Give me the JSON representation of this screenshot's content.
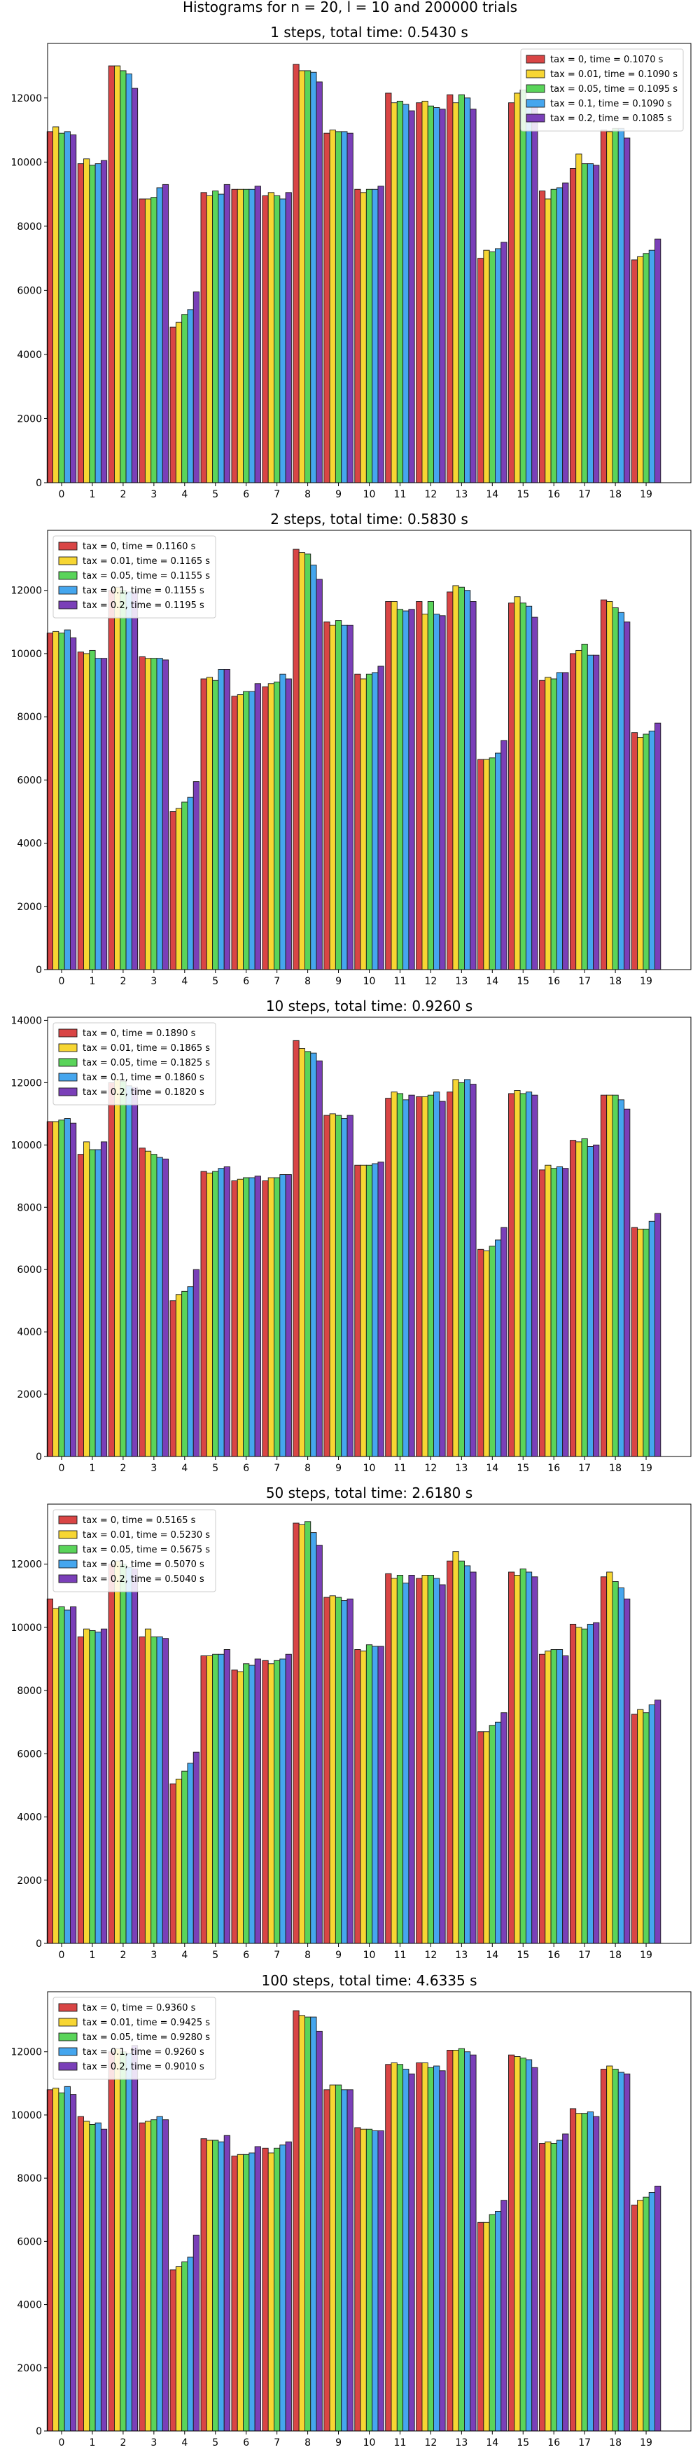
{
  "suptitle": "Histograms for n = 20, l = 10 and 200000 trials",
  "colors": [
    "#d94545",
    "#f7d633",
    "#5ad45a",
    "#45a6ee",
    "#7a3fb8"
  ],
  "chart_data": [
    {
      "type": "bar",
      "title": "1 steps, total time: 0.5430 s",
      "categories": [
        "0",
        "1",
        "2",
        "3",
        "4",
        "5",
        "6",
        "7",
        "8",
        "9",
        "10",
        "11",
        "12",
        "13",
        "14",
        "15",
        "16",
        "17",
        "18",
        "19"
      ],
      "ylim": [
        0,
        13700
      ],
      "yticks": [
        0,
        2000,
        4000,
        6000,
        8000,
        10000,
        12000
      ],
      "legend_position": "upper right",
      "series": [
        {
          "name": "tax = 0, time = 0.1070 s",
          "values": [
            10950,
            9950,
            13000,
            8850,
            4850,
            9050,
            9150,
            8950,
            13050,
            10900,
            9150,
            12150,
            11850,
            12100,
            7000,
            11850,
            9100,
            9800,
            11000,
            6950
          ]
        },
        {
          "name": "tax = 0.01, time = 0.1090 s",
          "values": [
            11100,
            10100,
            13000,
            8850,
            5000,
            8950,
            9150,
            9050,
            12850,
            11000,
            9050,
            11850,
            11900,
            11850,
            7250,
            12150,
            8850,
            10250,
            10950,
            7050
          ]
        },
        {
          "name": "tax = 0.05, time = 0.1095 s",
          "values": [
            10900,
            9900,
            12850,
            8900,
            5250,
            9100,
            9150,
            8950,
            12850,
            10950,
            9150,
            11900,
            11750,
            12100,
            7200,
            12250,
            9150,
            9950,
            11050,
            7150
          ]
        },
        {
          "name": "tax = 0.1, time = 0.1090 s",
          "values": [
            10950,
            9950,
            12750,
            9200,
            5400,
            9000,
            9150,
            8850,
            12800,
            10950,
            9150,
            11800,
            11700,
            12000,
            7300,
            11900,
            9200,
            9950,
            11050,
            7250
          ]
        },
        {
          "name": "tax = 0.2, time = 0.1085 s",
          "values": [
            10850,
            10050,
            12300,
            9300,
            5950,
            9300,
            9250,
            9050,
            12500,
            10900,
            9250,
            11600,
            11650,
            11650,
            7500,
            11950,
            9350,
            9900,
            10750,
            7600
          ]
        }
      ]
    },
    {
      "type": "bar",
      "title": "2 steps, total time: 0.5830 s",
      "categories": [
        "0",
        "1",
        "2",
        "3",
        "4",
        "5",
        "6",
        "7",
        "8",
        "9",
        "10",
        "11",
        "12",
        "13",
        "14",
        "15",
        "16",
        "17",
        "18",
        "19"
      ],
      "ylim": [
        0,
        13900
      ],
      "yticks": [
        0,
        2000,
        4000,
        6000,
        8000,
        10000,
        12000
      ],
      "legend_position": "upper left",
      "series": [
        {
          "name": "tax = 0, time = 0.1160 s",
          "values": [
            10650,
            10050,
            12000,
            9900,
            5000,
            9200,
            8650,
            8950,
            13300,
            11000,
            9350,
            11650,
            11650,
            11950,
            6650,
            11600,
            9150,
            10000,
            11700,
            7500
          ]
        },
        {
          "name": "tax = 0.01, time = 0.1165 s",
          "values": [
            10700,
            10000,
            12100,
            9850,
            5100,
            9250,
            8700,
            9050,
            13200,
            10900,
            9200,
            11650,
            11250,
            12150,
            6650,
            11800,
            9250,
            10100,
            11650,
            7350
          ]
        },
        {
          "name": "tax = 0.05, time = 0.1155 s",
          "values": [
            10650,
            10100,
            12000,
            9850,
            5300,
            9150,
            8800,
            9100,
            13150,
            11050,
            9350,
            11400,
            11650,
            12100,
            6700,
            11600,
            9200,
            10300,
            11450,
            7450
          ]
        },
        {
          "name": "tax = 0.1, time = 0.1155 s",
          "values": [
            10750,
            9850,
            11950,
            9850,
            5450,
            9500,
            8800,
            9350,
            12800,
            10900,
            9400,
            11350,
            11250,
            12000,
            6850,
            11500,
            9400,
            9950,
            11300,
            7550
          ]
        },
        {
          "name": "tax = 0.2, time = 0.1195 s",
          "values": [
            10500,
            9850,
            11950,
            9800,
            5950,
            9500,
            9050,
            9200,
            12350,
            10900,
            9600,
            11400,
            11200,
            11650,
            7250,
            11150,
            9400,
            9950,
            11000,
            7800
          ]
        }
      ]
    },
    {
      "type": "bar",
      "title": "10 steps, total time: 0.9260 s",
      "categories": [
        "0",
        "1",
        "2",
        "3",
        "4",
        "5",
        "6",
        "7",
        "8",
        "9",
        "10",
        "11",
        "12",
        "13",
        "14",
        "15",
        "16",
        "17",
        "18",
        "19"
      ],
      "ylim": [
        0,
        14100
      ],
      "yticks": [
        0,
        2000,
        4000,
        6000,
        8000,
        10000,
        12000,
        14000
      ],
      "legend_position": "upper left",
      "series": [
        {
          "name": "tax = 0, time = 0.1890 s",
          "values": [
            10750,
            9700,
            12000,
            9900,
            5000,
            9150,
            8850,
            8850,
            13350,
            10950,
            9350,
            11500,
            11550,
            11700,
            6650,
            11650,
            9200,
            10150,
            11600,
            7350
          ]
        },
        {
          "name": "tax = 0.01, time = 0.1865 s",
          "values": [
            10750,
            10100,
            12100,
            9800,
            5200,
            9100,
            8900,
            8950,
            13100,
            11000,
            9350,
            11700,
            11550,
            12100,
            6600,
            11750,
            9350,
            10100,
            11600,
            7300
          ]
        },
        {
          "name": "tax = 0.05, time = 0.1825 s",
          "values": [
            10800,
            9850,
            12050,
            9700,
            5300,
            9150,
            8950,
            8950,
            13000,
            10950,
            9350,
            11650,
            11600,
            12000,
            6750,
            11650,
            9250,
            10200,
            11600,
            7300
          ]
        },
        {
          "name": "tax = 0.1, time = 0.1860 s",
          "values": [
            10850,
            9850,
            11900,
            9600,
            5450,
            9250,
            8950,
            9050,
            12950,
            10850,
            9400,
            11450,
            11700,
            12100,
            6950,
            11700,
            9300,
            9950,
            11450,
            7550
          ]
        },
        {
          "name": "tax = 0.2, time = 0.1820 s",
          "values": [
            10700,
            10100,
            11850,
            9550,
            6000,
            9300,
            9000,
            9050,
            12700,
            10950,
            9450,
            11600,
            11400,
            11950,
            7350,
            11600,
            9250,
            10000,
            11150,
            7800
          ]
        }
      ]
    },
    {
      "type": "bar",
      "title": "50 steps, total time: 2.6180 s",
      "categories": [
        "0",
        "1",
        "2",
        "3",
        "4",
        "5",
        "6",
        "7",
        "8",
        "9",
        "10",
        "11",
        "12",
        "13",
        "14",
        "15",
        "16",
        "17",
        "18",
        "19"
      ],
      "ylim": [
        0,
        13900
      ],
      "yticks": [
        0,
        2000,
        4000,
        6000,
        8000,
        10000,
        12000
      ],
      "legend_position": "upper left",
      "series": [
        {
          "name": "tax = 0, time = 0.5165 s",
          "values": [
            10900,
            9700,
            12000,
            9700,
            5050,
            9100,
            8650,
            8950,
            13300,
            10950,
            9300,
            11700,
            11550,
            12100,
            6700,
            11750,
            9150,
            10100,
            11600,
            7250
          ]
        },
        {
          "name": "tax = 0.01, time = 0.5230 s",
          "values": [
            10600,
            9950,
            12100,
            9950,
            5200,
            9100,
            8600,
            8850,
            13250,
            11000,
            9250,
            11550,
            11650,
            12400,
            6700,
            11650,
            9250,
            10000,
            11750,
            7400
          ]
        },
        {
          "name": "tax = 0.05, time = 0.5675 s",
          "values": [
            10650,
            9900,
            12000,
            9700,
            5450,
            9150,
            8850,
            8950,
            13350,
            10950,
            9450,
            11650,
            11650,
            12100,
            6900,
            11850,
            9300,
            9950,
            11450,
            7300
          ]
        },
        {
          "name": "tax = 0.1, time = 0.5070 s",
          "values": [
            10550,
            9850,
            11900,
            9700,
            5700,
            9150,
            8800,
            9000,
            13000,
            10850,
            9400,
            11400,
            11550,
            11950,
            7000,
            11750,
            9300,
            10100,
            11250,
            7550
          ]
        },
        {
          "name": "tax = 0.2, time = 0.5040 s",
          "values": [
            10650,
            9950,
            11850,
            9650,
            6050,
            9300,
            9000,
            9150,
            12600,
            10900,
            9400,
            11650,
            11350,
            11750,
            7300,
            11600,
            9100,
            10150,
            10900,
            7700
          ]
        }
      ]
    },
    {
      "type": "bar",
      "title": "100 steps, total time: 4.6335 s",
      "categories": [
        "0",
        "1",
        "2",
        "3",
        "4",
        "5",
        "6",
        "7",
        "8",
        "9",
        "10",
        "11",
        "12",
        "13",
        "14",
        "15",
        "16",
        "17",
        "18",
        "19"
      ],
      "ylim": [
        0,
        13900
      ],
      "yticks": [
        0,
        2000,
        4000,
        6000,
        8000,
        10000,
        12000
      ],
      "legend_position": "upper left",
      "series": [
        {
          "name": "tax = 0, time = 0.9360 s",
          "values": [
            10800,
            9950,
            12000,
            9750,
            5100,
            9250,
            8700,
            8950,
            13300,
            10800,
            9600,
            11600,
            11650,
            12050,
            6600,
            11900,
            9100,
            10200,
            11450,
            7150
          ]
        },
        {
          "name": "tax = 0.01, time = 0.9425 s",
          "values": [
            10850,
            9800,
            12100,
            9800,
            5200,
            9200,
            8750,
            8800,
            13150,
            10950,
            9550,
            11650,
            11650,
            12050,
            6600,
            11850,
            9150,
            10050,
            11550,
            7300
          ]
        },
        {
          "name": "tax = 0.05, time = 0.9280 s",
          "values": [
            10700,
            9700,
            12000,
            9850,
            5350,
            9200,
            8750,
            8950,
            13100,
            10950,
            9550,
            11600,
            11500,
            12100,
            6850,
            11800,
            9100,
            10050,
            11450,
            7400
          ]
        },
        {
          "name": "tax = 0.1, time = 0.9260 s",
          "values": [
            10900,
            9750,
            11950,
            9950,
            5500,
            9150,
            8800,
            9050,
            13100,
            10800,
            9500,
            11450,
            11550,
            12000,
            6950,
            11750,
            9200,
            10100,
            11350,
            7550
          ]
        },
        {
          "name": "tax = 0.2, time = 0.9010 s",
          "values": [
            10650,
            9550,
            12200,
            9850,
            6200,
            9350,
            9000,
            9150,
            12650,
            10800,
            9500,
            11300,
            11400,
            11900,
            7300,
            11500,
            9400,
            9950,
            11300,
            7750
          ]
        }
      ]
    }
  ]
}
